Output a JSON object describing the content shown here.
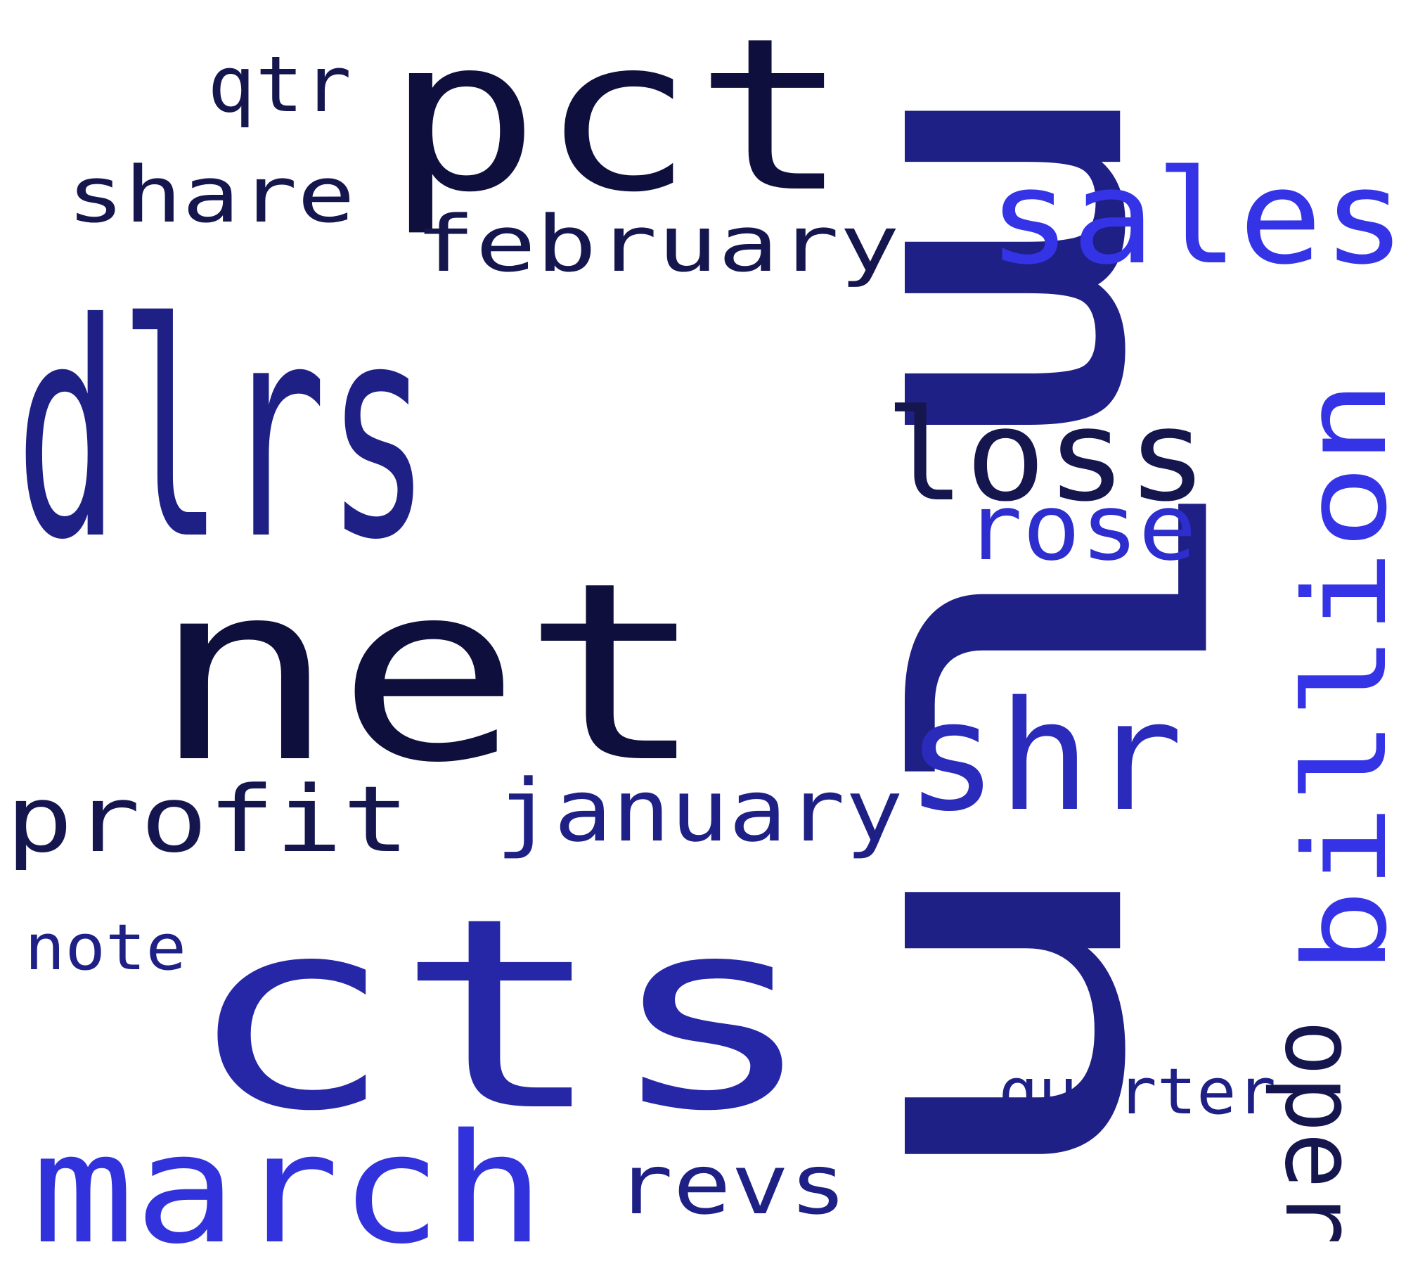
{
  "words": [
    {
      "id": "dlrs",
      "text": "dlrs",
      "color": "#1f2085"
    },
    {
      "id": "net",
      "text": "net",
      "color": "#0e0f3c"
    },
    {
      "id": "cts",
      "text": "cts",
      "color": "#2627a7"
    },
    {
      "id": "pct",
      "text": "pct",
      "color": "#0e0f3c"
    },
    {
      "id": "mln",
      "text": "mln",
      "color": "#1f2085"
    },
    {
      "id": "march",
      "text": "march",
      "color": "#3232dd"
    },
    {
      "id": "sales",
      "text": "sales",
      "color": "#3434e6"
    },
    {
      "id": "shr",
      "text": "shr",
      "color": "#2a2abb"
    },
    {
      "id": "billion",
      "text": "billion",
      "color": "#3434e6"
    },
    {
      "id": "loss",
      "text": "loss",
      "color": "#16164f"
    },
    {
      "id": "rose",
      "text": "rose",
      "color": "#2e2ece"
    },
    {
      "id": "profit",
      "text": "profit",
      "color": "#16164f"
    },
    {
      "id": "january",
      "text": "january",
      "color": "#1f2085"
    },
    {
      "id": "february",
      "text": "february",
      "color": "#16164f"
    },
    {
      "id": "share",
      "text": "share",
      "color": "#16164f"
    },
    {
      "id": "qtr",
      "text": "qtr",
      "color": "#16164f"
    },
    {
      "id": "revs",
      "text": "revs",
      "color": "#1f2085"
    },
    {
      "id": "note",
      "text": "note",
      "color": "#1f2085"
    },
    {
      "id": "quarter",
      "text": "quarter",
      "color": "#1f2085"
    },
    {
      "id": "oper",
      "text": "oper",
      "color": "#16164f"
    }
  ]
}
